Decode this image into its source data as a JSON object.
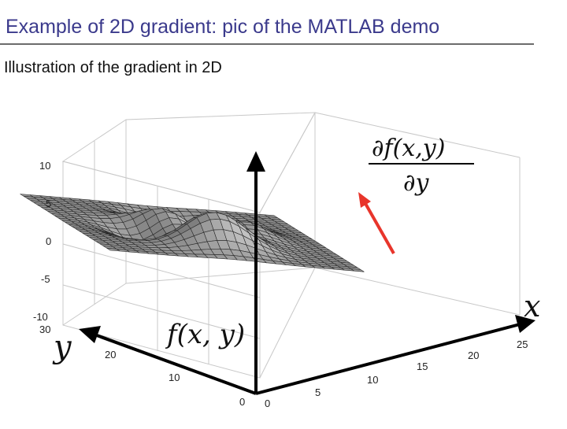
{
  "slide": {
    "title": "Example of 2D gradient: pic of the MATLAB demo",
    "subtitle": "Illustration of the gradient in 2D"
  },
  "figure": {
    "z_ticks": [
      "10",
      "5",
      "0",
      "-5",
      "-10"
    ],
    "y_ticks": [
      "30",
      "20",
      "10",
      "0"
    ],
    "x_ticks": [
      "0",
      "5",
      "10",
      "15",
      "20",
      "25"
    ],
    "axis_x_label": "x",
    "axis_y_label": "y",
    "function_label": "f(x, y)",
    "derivative_numerator": "∂f(x,y)",
    "derivative_denominator": "∂y",
    "arrow_color": "#e8352b",
    "surface_color": "#8a8a8a"
  }
}
